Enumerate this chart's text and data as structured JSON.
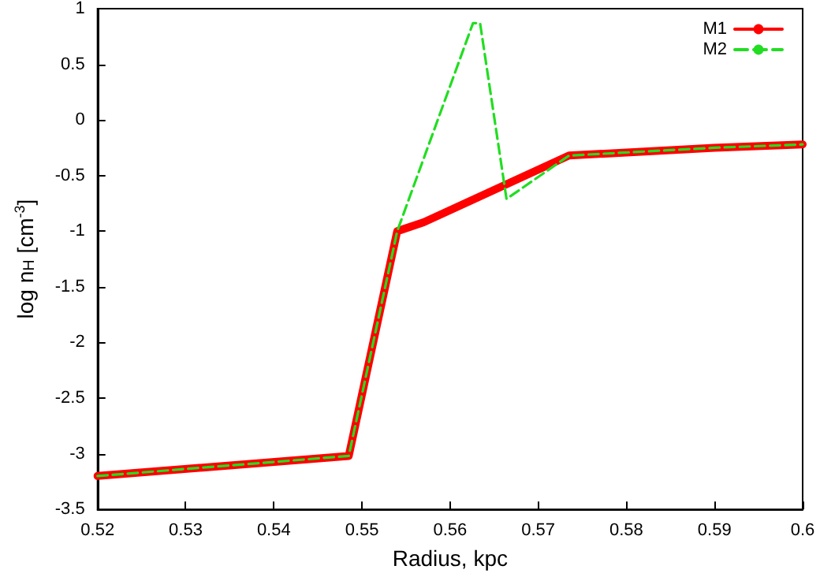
{
  "chart_data": {
    "type": "line",
    "xlabel": "Radius, kpc",
    "ylabel": "log n$_{H}$ [cm$^{-3}$]",
    "xlim": [
      0.52,
      0.6
    ],
    "xticks": [
      0.52,
      0.53,
      0.54,
      0.55,
      0.56,
      0.57,
      0.58,
      0.59,
      0.6
    ],
    "ylim": [
      -3.5,
      1
    ],
    "yticks": [
      -3.5,
      -3,
      -2.5,
      -2,
      -1.5,
      -1,
      -0.5,
      0,
      0.5,
      1
    ],
    "grid": false,
    "legend": "top right",
    "marker": "none",
    "series": [
      {
        "name": "M1",
        "color": "#ff0000",
        "line_style": "solid",
        "x": [
          0.52,
          0.5485,
          0.554,
          0.557,
          0.5735,
          0.59,
          0.6
        ],
        "values": [
          -3.2,
          -3.02,
          -1.0,
          -0.92,
          -0.32,
          -0.25,
          -0.22
        ]
      },
      {
        "name": "M2",
        "color": "#22dd22",
        "line_style": "dashed",
        "x": [
          0.52,
          0.5485,
          0.554,
          0.5626,
          0.5634,
          0.5664,
          0.5735,
          0.59,
          0.6
        ],
        "values": [
          -3.2,
          -3.02,
          -1.0,
          0.87,
          0.87,
          -0.71,
          -0.32,
          -0.25,
          -0.22
        ]
      }
    ]
  }
}
